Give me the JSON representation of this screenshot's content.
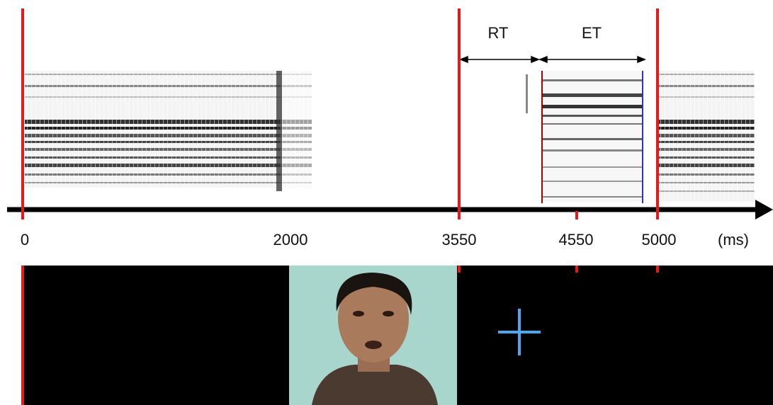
{
  "annotations": {
    "rt": "RT",
    "et": "ET"
  },
  "timeline": {
    "ticks": [
      "0",
      "2000",
      "3550",
      "4550",
      "5000"
    ],
    "unit": "(ms)"
  }
}
